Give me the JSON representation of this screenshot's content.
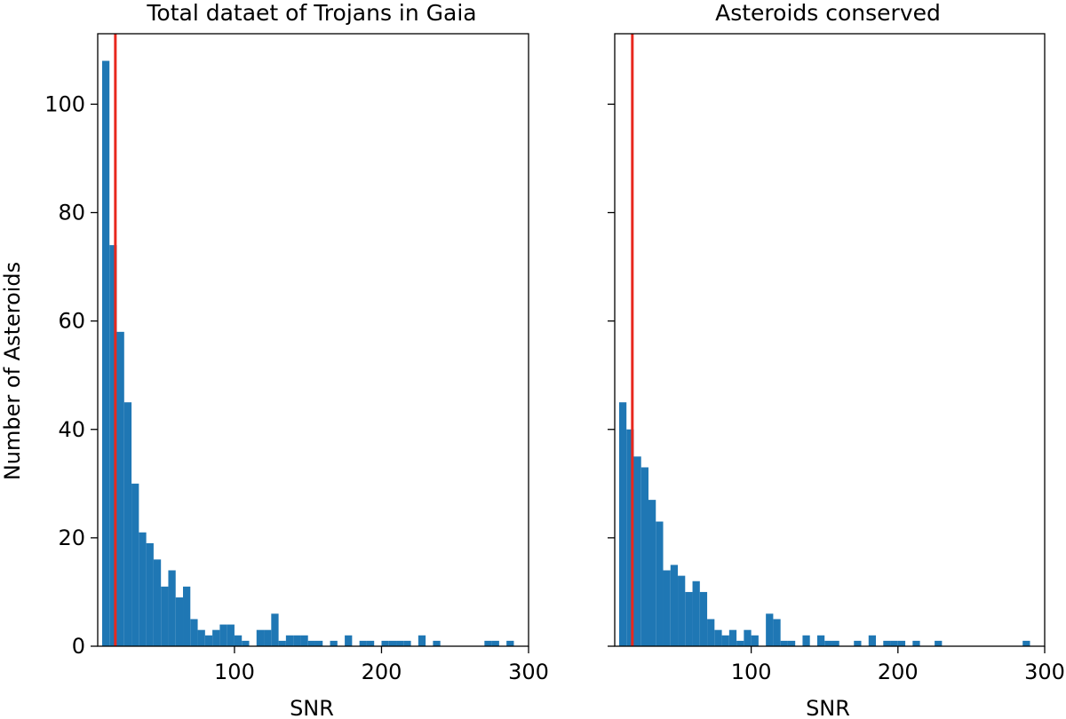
{
  "figure": {
    "ylabel": "Number of Asteroids",
    "shared_y_ticks": [
      "0",
      "20",
      "40",
      "60",
      "80",
      "100"
    ],
    "bar_color": "#1f77b4",
    "threshold_color": "#e8281e"
  },
  "chart_data": [
    {
      "type": "bar",
      "title": "Total dataet of Trojans in Gaia",
      "xlabel": "SNR",
      "ylabel": "Number of Asteroids",
      "xlim": [
        7,
        300
      ],
      "ylim": [
        0,
        113
      ],
      "x_ticks": [
        "100",
        "200",
        "300"
      ],
      "y_ticks": [
        "0",
        "20",
        "40",
        "60",
        "80",
        "100"
      ],
      "bin_start": 10,
      "bin_width": 5,
      "values": [
        108,
        74,
        58,
        45,
        30,
        21,
        19,
        16,
        11,
        14,
        9,
        11,
        5,
        3,
        2,
        3,
        4,
        4,
        2,
        1,
        0,
        3,
        3,
        6,
        1,
        2,
        2,
        2,
        1,
        1,
        0,
        1,
        0,
        2,
        0,
        1,
        1,
        0,
        1,
        1,
        1,
        1,
        0,
        2,
        0,
        1,
        0,
        0,
        0,
        0,
        0,
        0,
        1,
        1,
        0,
        1
      ],
      "threshold_x": 19,
      "grid": false
    },
    {
      "type": "bar",
      "title": "Asteroids conserved",
      "xlabel": "SNR",
      "ylabel": "",
      "xlim": [
        7,
        300
      ],
      "ylim": [
        0,
        113
      ],
      "x_ticks": [
        "100",
        "200",
        "300"
      ],
      "y_ticks": [],
      "bin_start": 10,
      "bin_width": 5,
      "values": [
        45,
        40,
        35,
        33,
        27,
        23,
        14,
        15,
        13,
        10,
        12,
        10,
        5,
        3,
        2,
        3,
        1,
        3,
        2,
        0,
        6,
        5,
        1,
        1,
        0,
        2,
        0,
        2,
        1,
        1,
        0,
        0,
        1,
        0,
        2,
        0,
        1,
        1,
        1,
        0,
        1,
        0,
        0,
        1,
        0,
        0,
        0,
        0,
        0,
        0,
        0,
        0,
        0,
        0,
        0,
        1
      ],
      "threshold_x": 19,
      "grid": false
    }
  ]
}
